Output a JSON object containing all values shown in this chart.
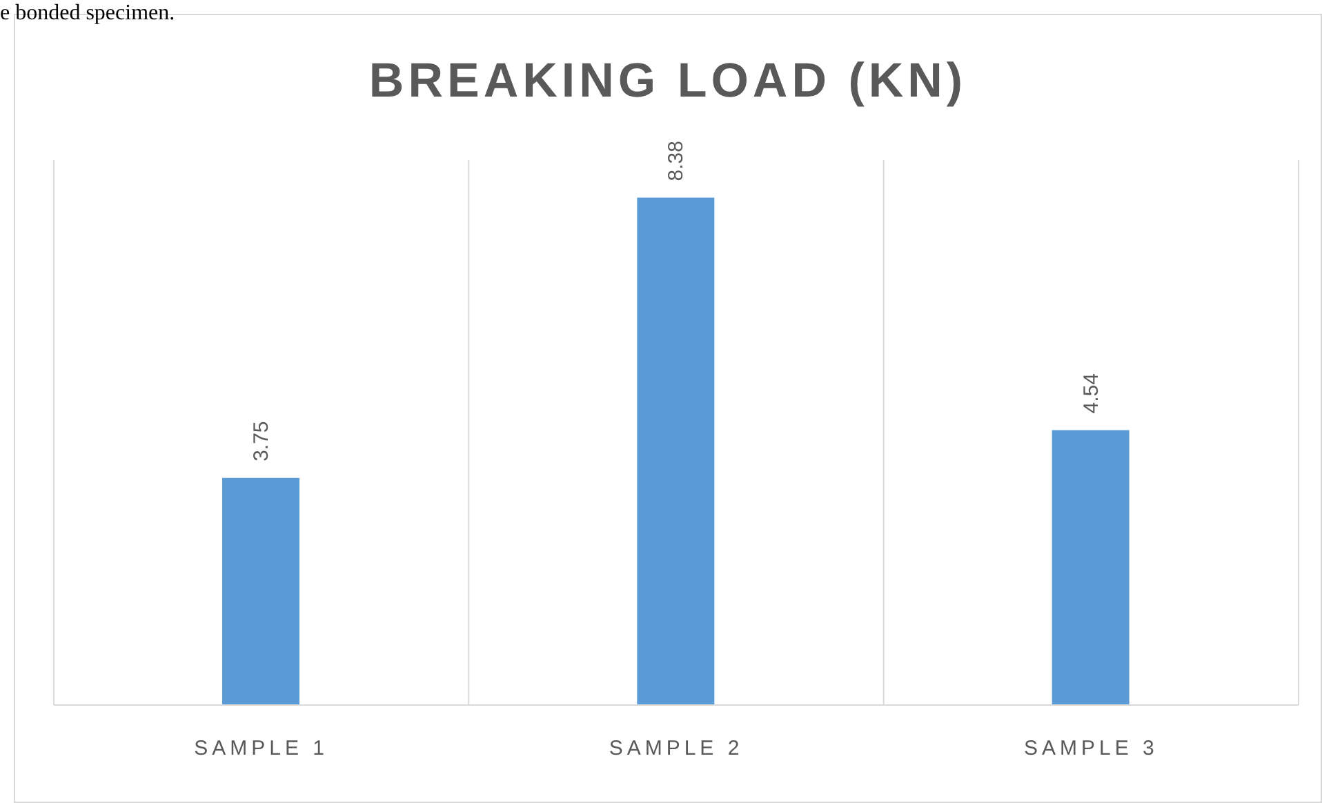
{
  "chart_data": {
    "type": "bar",
    "title": "BREAKING LOAD (KN)",
    "annotations": [
      "e bonded specimen."
    ],
    "categories": [
      "SAMPLE 1",
      "SAMPLE 2",
      "SAMPLE 3"
    ],
    "values": [
      3.75,
      8.38,
      4.54
    ],
    "color": "#5b9bd5",
    "ylim": [
      0,
      9
    ],
    "data_labels": true,
    "grid": "x",
    "tick_labels": "x"
  }
}
